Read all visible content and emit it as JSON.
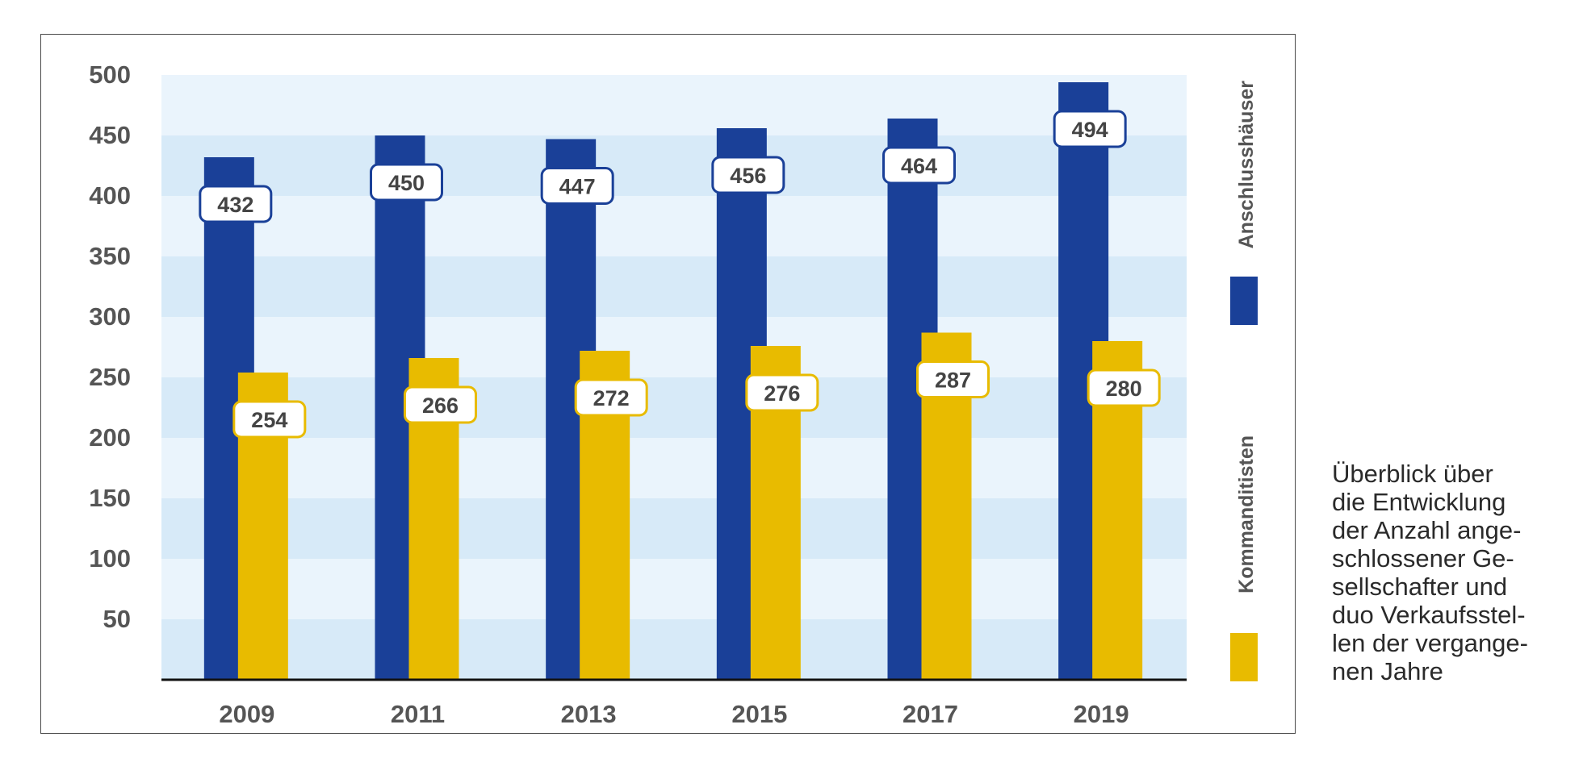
{
  "chart_data": {
    "type": "bar",
    "categories": [
      "2009",
      "2011",
      "2013",
      "2015",
      "2017",
      "2019"
    ],
    "series": [
      {
        "name": "Anschlusshäuser",
        "values": [
          432,
          450,
          447,
          456,
          464,
          494
        ],
        "color": "#1a4098"
      },
      {
        "name": "Kommanditisten",
        "values": [
          254,
          266,
          272,
          276,
          287,
          280
        ],
        "color": "#e8bb00"
      }
    ],
    "ylim": [
      0,
      500
    ],
    "yticks": [
      50,
      100,
      150,
      200,
      250,
      300,
      350,
      400,
      450,
      500
    ],
    "grid": "alternating-bands",
    "legend": "right",
    "colors": {
      "band_light": "#eaf4fc",
      "band_dark": "#d7eaf8",
      "axis": "#111111",
      "tick_text": "#555555"
    }
  },
  "caption": {
    "lines": [
      "Überblick über",
      "die Entwicklung",
      "der Anzahl ange-",
      "schlossener Ge-",
      "sellschafter und",
      "duo Verkaufsstel-",
      "len der vergange-",
      "nen Jahre"
    ]
  }
}
